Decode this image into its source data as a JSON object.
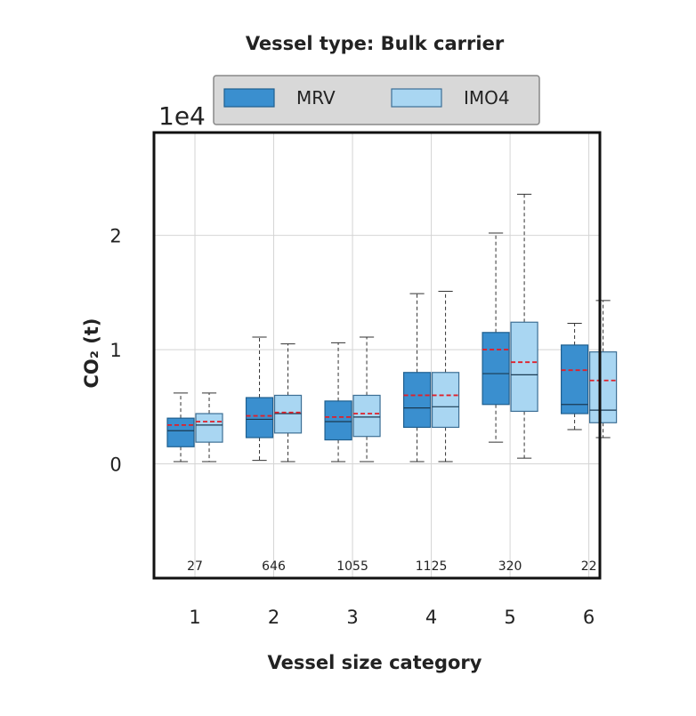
{
  "chart_data": {
    "type": "box",
    "title": "Vessel type: Bulk carrier",
    "xlabel": "Vessel size category",
    "ylabel": "CO₂ (t)",
    "y_scale_exponent_label": "1e4",
    "y_unit_multiplier": 10000,
    "ylim": [
      -1.0,
      2.9
    ],
    "y_ticks": [
      {
        "value": 0,
        "label": "0"
      },
      {
        "value": 1,
        "label": "1"
      },
      {
        "value": 2,
        "label": "2"
      }
    ],
    "categories": [
      "1",
      "2",
      "3",
      "4",
      "5",
      "6"
    ],
    "counts": [
      "27",
      "646",
      "1055",
      "1125",
      "320",
      "22"
    ],
    "grid": true,
    "legend_position": "top",
    "series": [
      {
        "name": "MRV",
        "color": "#3a8fcf",
        "boxes": [
          {
            "whisker_low": 0.02,
            "q1": 0.15,
            "median": 0.29,
            "q3": 0.4,
            "whisker_high": 0.62,
            "mean": 0.34
          },
          {
            "whisker_low": 0.03,
            "q1": 0.23,
            "median": 0.39,
            "q3": 0.58,
            "whisker_high": 1.11,
            "mean": 0.42
          },
          {
            "whisker_low": 0.02,
            "q1": 0.21,
            "median": 0.37,
            "q3": 0.55,
            "whisker_high": 1.06,
            "mean": 0.41
          },
          {
            "whisker_low": 0.02,
            "q1": 0.32,
            "median": 0.49,
            "q3": 0.8,
            "whisker_high": 1.49,
            "mean": 0.6
          },
          {
            "whisker_low": 0.19,
            "q1": 0.52,
            "median": 0.79,
            "q3": 1.15,
            "whisker_high": 2.02,
            "mean": 1.0
          },
          {
            "whisker_low": 0.3,
            "q1": 0.44,
            "median": 0.52,
            "q3": 1.04,
            "whisker_high": 1.23,
            "mean": 0.82
          }
        ]
      },
      {
        "name": "IMO4",
        "color": "#a9d6f2",
        "boxes": [
          {
            "whisker_low": 0.02,
            "q1": 0.19,
            "median": 0.34,
            "q3": 0.44,
            "whisker_high": 0.62,
            "mean": 0.37
          },
          {
            "whisker_low": 0.02,
            "q1": 0.27,
            "median": 0.44,
            "q3": 0.6,
            "whisker_high": 1.05,
            "mean": 0.45
          },
          {
            "whisker_low": 0.02,
            "q1": 0.24,
            "median": 0.41,
            "q3": 0.6,
            "whisker_high": 1.11,
            "mean": 0.44
          },
          {
            "whisker_low": 0.02,
            "q1": 0.32,
            "median": 0.5,
            "q3": 0.8,
            "whisker_high": 1.51,
            "mean": 0.6
          },
          {
            "whisker_low": 0.05,
            "q1": 0.46,
            "median": 0.78,
            "q3": 1.24,
            "whisker_high": 2.36,
            "mean": 0.89
          },
          {
            "whisker_low": 0.23,
            "q1": 0.36,
            "median": 0.47,
            "q3": 0.98,
            "whisker_high": 1.43,
            "mean": 0.73
          }
        ]
      }
    ]
  }
}
